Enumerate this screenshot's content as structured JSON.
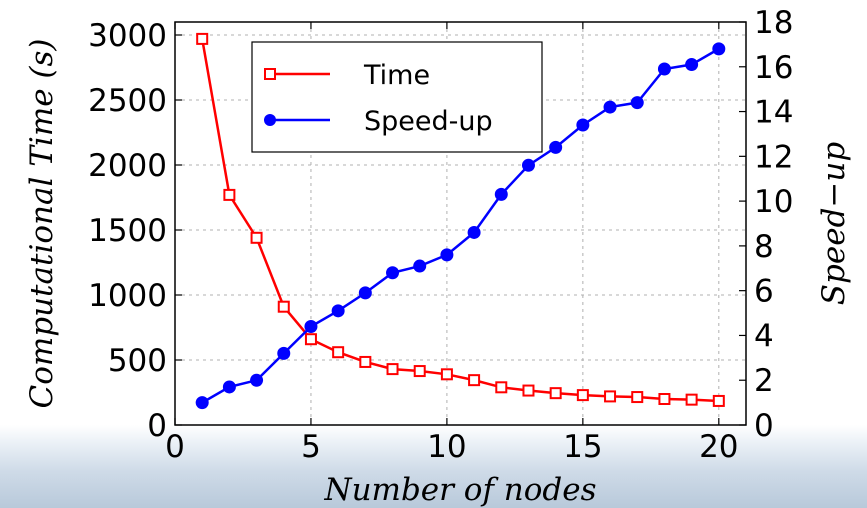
{
  "chart_data": {
    "type": "line",
    "title": "",
    "xlabel": "Number of nodes",
    "ylabel_left": "Computational Time (s)",
    "ylabel_right": "Speed−up",
    "xlim": [
      0,
      21
    ],
    "ylim_left": [
      0,
      3100
    ],
    "ylim_right": [
      0,
      18
    ],
    "x_ticks": [
      0,
      5,
      10,
      15,
      20
    ],
    "y_left_ticks": [
      0,
      500,
      1000,
      1500,
      2000,
      2500,
      3000
    ],
    "y_right_ticks": [
      0,
      2,
      4,
      6,
      8,
      10,
      12,
      14,
      16,
      18
    ],
    "grid": true,
    "legend_position": "top-center",
    "x": [
      1,
      2,
      3,
      4,
      5,
      6,
      7,
      8,
      9,
      10,
      11,
      12,
      13,
      14,
      15,
      16,
      17,
      18,
      19,
      20
    ],
    "series": [
      {
        "name": "Time",
        "axis": "left",
        "color": "#ff0000",
        "marker": "open-square",
        "values": [
          2970,
          1770,
          1440,
          910,
          660,
          560,
          485,
          430,
          415,
          390,
          345,
          290,
          265,
          245,
          230,
          220,
          215,
          200,
          195,
          185
        ]
      },
      {
        "name": "Speed-up",
        "axis": "right",
        "color": "#0000ff",
        "marker": "filled-circle",
        "values": [
          1.0,
          1.7,
          2.0,
          3.2,
          4.4,
          5.1,
          5.9,
          6.8,
          7.1,
          7.6,
          8.6,
          10.3,
          11.6,
          12.4,
          13.4,
          14.2,
          14.4,
          15.9,
          16.1,
          16.8
        ]
      }
    ]
  }
}
